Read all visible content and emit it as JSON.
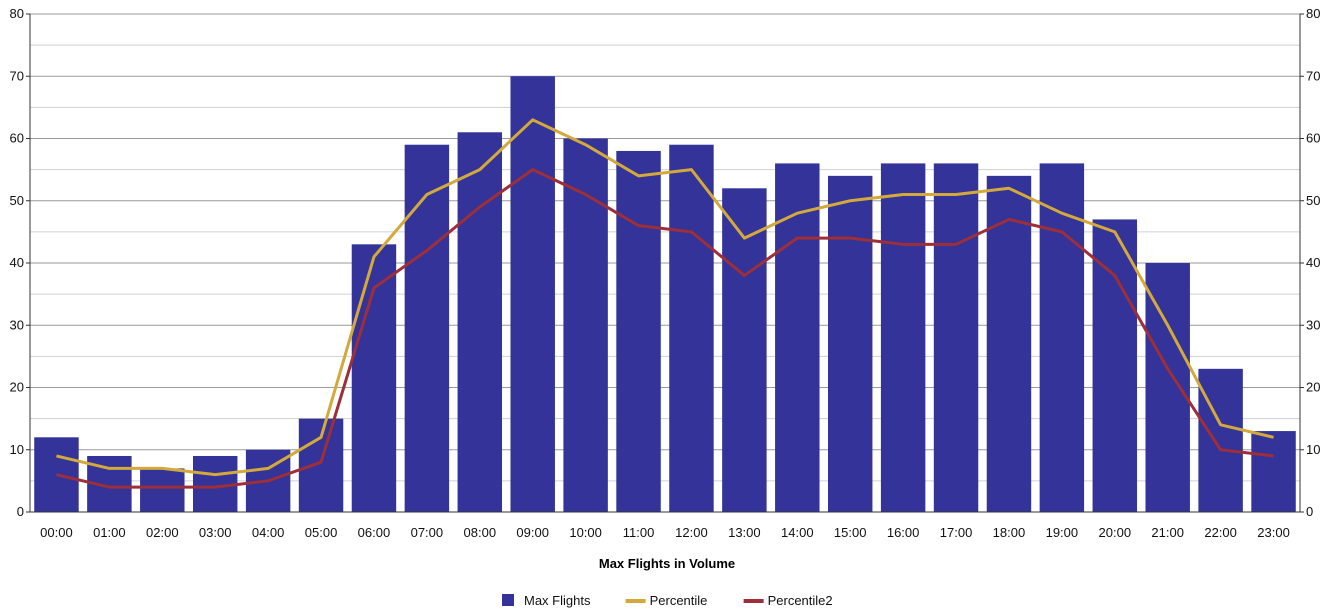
{
  "chart_data": {
    "type": "bar",
    "title": "",
    "xlabel": "Max Flights in Volume",
    "ylabel": "",
    "ylim": [
      0,
      80
    ],
    "yticks": [
      0,
      10,
      20,
      30,
      40,
      50,
      60,
      70,
      80
    ],
    "grid": true,
    "legend_position": "bottom",
    "categories": [
      "00:00",
      "01:00",
      "02:00",
      "03:00",
      "04:00",
      "05:00",
      "06:00",
      "07:00",
      "08:00",
      "09:00",
      "10:00",
      "11:00",
      "12:00",
      "13:00",
      "14:00",
      "15:00",
      "16:00",
      "17:00",
      "18:00",
      "19:00",
      "20:00",
      "21:00",
      "22:00",
      "23:00"
    ],
    "series": [
      {
        "name": "Max Flights",
        "kind": "bar",
        "color": "#333399",
        "values": [
          12,
          9,
          7,
          9,
          10,
          15,
          43,
          59,
          61,
          70,
          60,
          58,
          59,
          52,
          56,
          54,
          56,
          56,
          54,
          56,
          47,
          40,
          23,
          13
        ]
      },
      {
        "name": "Percentile",
        "kind": "line",
        "color": "#D4A93C",
        "values": [
          9,
          7,
          7,
          6,
          7,
          12,
          41,
          51,
          55,
          63,
          59,
          54,
          55,
          44,
          48,
          50,
          51,
          51,
          52,
          48,
          45,
          30,
          14,
          12
        ]
      },
      {
        "name": "Percentile2",
        "kind": "line",
        "color": "#9C2F3A",
        "values": [
          6,
          4,
          4,
          4,
          5,
          8,
          36,
          42,
          49,
          55,
          51,
          46,
          45,
          38,
          44,
          44,
          43,
          43,
          47,
          45,
          38,
          23,
          10,
          9
        ]
      }
    ]
  }
}
